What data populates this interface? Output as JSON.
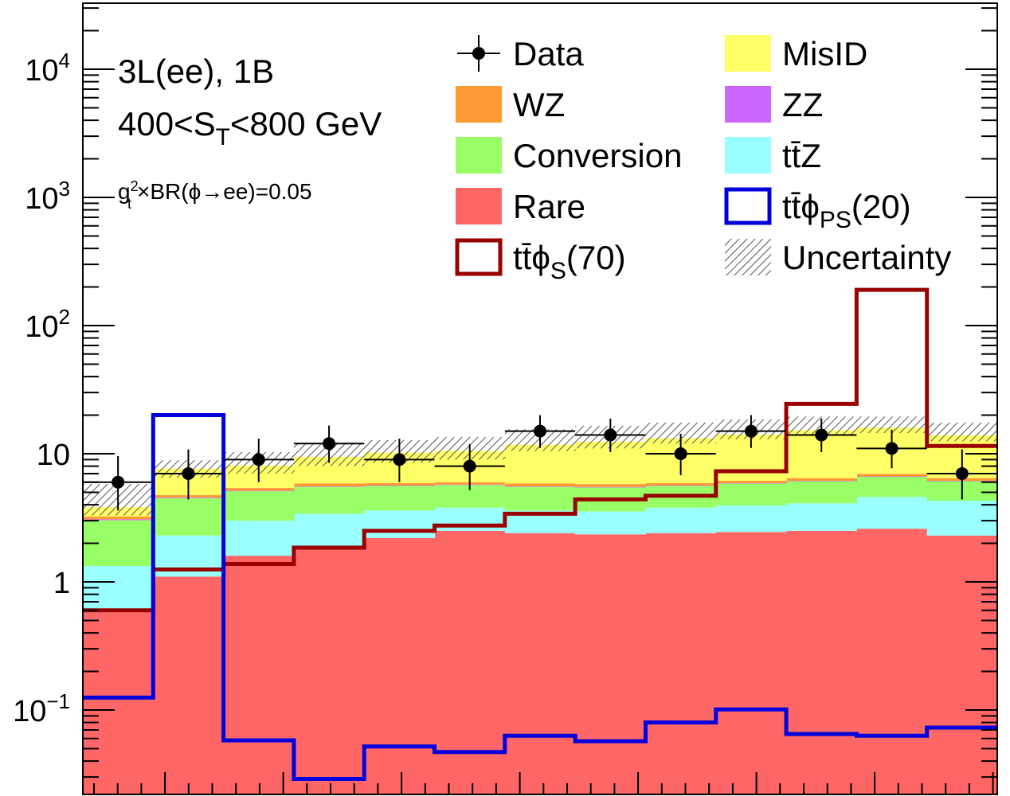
{
  "chart_data": {
    "type": "bar",
    "stacked": true,
    "log_y": true,
    "ylim": [
      0.02,
      25000
    ],
    "y_tick_labels": [
      {
        "value": 0.1,
        "base": "10",
        "exp": "−1"
      },
      {
        "value": 1,
        "base": "1",
        "exp": ""
      },
      {
        "value": 10,
        "base": "10",
        "exp": ""
      },
      {
        "value": 100,
        "base": "10",
        "exp": "2"
      },
      {
        "value": 1000,
        "base": "10",
        "exp": "3"
      },
      {
        "value": 10000,
        "base": "10",
        "exp": "4"
      }
    ],
    "n_bins": 13,
    "annotations": {
      "channel": "3L(ee), 1B",
      "st_prefix": "400<S",
      "st_sub": "T",
      "st_suffix": "<800 GeV",
      "coupling_g": "g",
      "coupling_sup": "2",
      "coupling_sub": "t",
      "coupling_rest": "×BR(ϕ→ee)=0.05"
    },
    "stack_order": [
      "Rare",
      "ttZ",
      "Conversion",
      "ZZ",
      "WZ",
      "MisID"
    ],
    "series": [
      {
        "name": "Rare",
        "color": "#ff6666",
        "values": [
          0.58,
          1.1,
          1.6,
          1.9,
          2.2,
          2.5,
          2.4,
          2.35,
          2.4,
          2.45,
          2.5,
          2.6,
          2.3
        ]
      },
      {
        "name": "ttZ",
        "color": "#99ffff",
        "values": [
          0.75,
          1.2,
          1.4,
          1.5,
          1.4,
          1.3,
          1.2,
          1.2,
          1.4,
          1.5,
          1.6,
          2.0,
          2.0
        ]
      },
      {
        "name": "Conversion",
        "color": "#99ff66",
        "values": [
          1.7,
          2.2,
          2.1,
          2.1,
          2.0,
          1.9,
          1.9,
          1.9,
          1.8,
          1.9,
          2.0,
          2.0,
          1.8
        ]
      },
      {
        "name": "ZZ",
        "color": "#cc66ff",
        "values": [
          0.05,
          0.05,
          0.05,
          0.05,
          0.05,
          0.05,
          0.05,
          0.05,
          0.05,
          0.05,
          0.05,
          0.05,
          0.05
        ]
      },
      {
        "name": "WZ",
        "color": "#ff9933",
        "values": [
          0.15,
          0.2,
          0.25,
          0.3,
          0.25,
          0.25,
          0.3,
          0.3,
          0.25,
          0.25,
          0.3,
          0.3,
          0.3
        ]
      },
      {
        "name": "MisID",
        "color": "#ffff66",
        "values": [
          0.6,
          2.9,
          2.7,
          3.6,
          4.3,
          4.5,
          5.9,
          6.6,
          7.3,
          8.0,
          8.8,
          9.0,
          7.5
        ]
      }
    ],
    "uncertainty": {
      "name": "Uncertainty",
      "low": [
        3.3,
        6.5,
        7.0,
        8.0,
        8.5,
        9.0,
        10.5,
        11.0,
        12.0,
        13.0,
        14.0,
        14.5,
        12.5
      ],
      "high": [
        5.8,
        8.9,
        10.3,
        12.2,
        12.8,
        13.5,
        15.5,
        16.5,
        17.5,
        18.5,
        19.5,
        19.5,
        17.5
      ]
    },
    "signals": [
      {
        "name": "ttϕS(70)",
        "label_base": "tt̄ϕ",
        "label_sub": "S",
        "label_suffix": "(70)",
        "color": "#990000",
        "values": [
          0.6,
          1.25,
          1.38,
          1.85,
          2.5,
          2.75,
          3.4,
          4.4,
          4.7,
          7.3,
          24.5,
          190,
          11.5
        ]
      },
      {
        "name": "ttϕPS(20)",
        "label_base": "tt̄ϕ",
        "label_sub": "PS",
        "label_suffix": "(20)",
        "color": "#0000dd",
        "values": [
          0.125,
          20,
          0.058,
          0.029,
          0.052,
          0.047,
          0.063,
          0.057,
          0.08,
          0.101,
          0.065,
          0.063,
          0.073
        ]
      }
    ],
    "data_points": {
      "name": "Data",
      "values": [
        6,
        7,
        9,
        12,
        9,
        8,
        15,
        14,
        10,
        15,
        14,
        11,
        7
      ],
      "err_low": [
        2.4,
        2.6,
        3.0,
        3.5,
        3.0,
        2.8,
        3.9,
        3.7,
        3.2,
        3.9,
        3.7,
        3.3,
        2.6
      ],
      "err_high": [
        3.6,
        3.8,
        4.1,
        4.6,
        4.1,
        3.9,
        5.0,
        4.8,
        4.3,
        5.0,
        4.8,
        4.4,
        3.8
      ]
    },
    "legend": [
      {
        "label": "Data",
        "kind": "marker"
      },
      {
        "label": "MisID",
        "kind": "fill",
        "color": "#ffff66"
      },
      {
        "label": "WZ",
        "kind": "fill",
        "color": "#ff9933"
      },
      {
        "label": "ZZ",
        "kind": "fill",
        "color": "#cc66ff"
      },
      {
        "label": "Conversion",
        "kind": "fill",
        "color": "#99ff66"
      },
      {
        "label": "tt̄Z",
        "kind": "fill",
        "color": "#99ffff"
      },
      {
        "label": "Rare",
        "kind": "fill",
        "color": "#ff6666"
      },
      {
        "label": "tt̄ϕ",
        "sub": "PS",
        "suffix": "(20)",
        "kind": "line",
        "color": "#0000dd"
      },
      {
        "label": "tt̄ϕ",
        "sub": "S",
        "suffix": "(70)",
        "kind": "line",
        "color": "#990000"
      },
      {
        "label": "Uncertainty",
        "kind": "hatch"
      }
    ]
  }
}
